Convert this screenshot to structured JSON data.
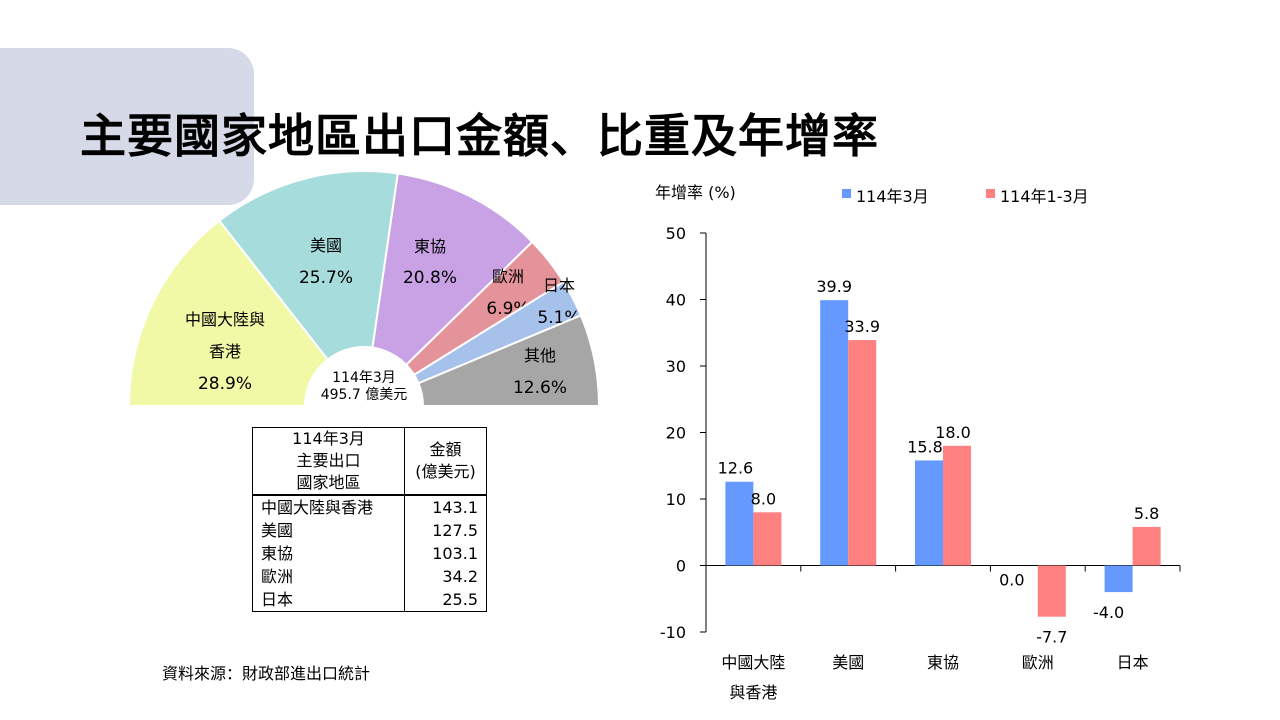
{
  "slide": {
    "title": "主要國家地區出口金額、比重及年增率",
    "source": "資料來源：財政部進出口統計"
  },
  "chart_data": [
    {
      "type": "pie",
      "shape": "semicircle",
      "center_label": [
        "114年3月",
        "495.7 億美元"
      ],
      "slices": [
        {
          "label": [
            "中國大陸與",
            "香港"
          ],
          "value": 28.9,
          "value_label": "28.9%",
          "color": "#f1f8a6"
        },
        {
          "label": [
            "美國"
          ],
          "value": 25.7,
          "value_label": "25.7%",
          "color": "#a6dcdb"
        },
        {
          "label": [
            "東協"
          ],
          "value": 20.8,
          "value_label": "20.8%",
          "color": "#c9a2e6"
        },
        {
          "label": [
            "歐洲"
          ],
          "value": 6.9,
          "value_label": "6.9%",
          "color": "#e5939a"
        },
        {
          "label": [
            "日本"
          ],
          "value": 5.1,
          "value_label": "5.1%",
          "color": "#a7c2ea"
        },
        {
          "label": [
            "其他"
          ],
          "value": 12.6,
          "value_label": "12.6%",
          "color": "#a6a6a6"
        }
      ]
    },
    {
      "type": "table",
      "header": [
        [
          "114年3月",
          "主要出口",
          "國家地區"
        ],
        [
          "金額",
          "(億美元)"
        ]
      ],
      "rows": [
        [
          "中國大陸與香港",
          "143.1"
        ],
        [
          "美國",
          "127.5"
        ],
        [
          "東協",
          "103.1"
        ],
        [
          "歐洲",
          "34.2"
        ],
        [
          "日本",
          "25.5"
        ]
      ]
    },
    {
      "type": "bar",
      "ylabel": "年增率 (%)",
      "ylim": [
        -10,
        50
      ],
      "yticks": [
        50,
        40,
        30,
        20,
        10,
        0,
        -10
      ],
      "categories": [
        [
          "中國大陸",
          "與香港"
        ],
        [
          "美國"
        ],
        [
          "東協"
        ],
        [
          "歐洲"
        ],
        [
          "日本"
        ]
      ],
      "legend_position": "top",
      "series": [
        {
          "name": "114年3月",
          "color": "#6699ff",
          "values": [
            12.6,
            39.9,
            15.8,
            0.0,
            -4.0
          ],
          "labels": [
            "12.6",
            "39.9",
            "15.8",
            "0.0",
            "-4.0"
          ]
        },
        {
          "name": "114年1-3月",
          "color": "#ff8080",
          "values": [
            8.0,
            33.9,
            18.0,
            -7.7,
            5.8
          ],
          "labels": [
            "8.0",
            "33.9",
            "18.0",
            "-7.7",
            "5.8"
          ]
        }
      ]
    }
  ]
}
